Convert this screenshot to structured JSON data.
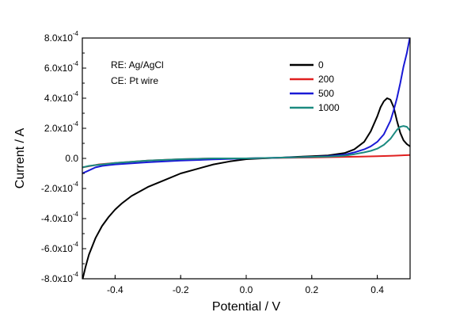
{
  "chart_data": {
    "type": "line",
    "title": "",
    "xlabel": "Potential / V",
    "ylabel": "Current / A",
    "xlim": [
      -0.5,
      0.5
    ],
    "ylim": [
      -0.0008,
      0.0008
    ],
    "grid": false,
    "x_ticks": [
      -0.4,
      -0.2,
      0.0,
      0.2,
      0.4
    ],
    "x_tick_labels": [
      "-0.4",
      "-0.2",
      "0.0",
      "0.2",
      "0.4"
    ],
    "y_tick_labels": [
      {
        "value": 0.0008,
        "mantissa": "8.0x10",
        "exp": "-4"
      },
      {
        "value": 0.0006,
        "mantissa": "6.0x10",
        "exp": "-4"
      },
      {
        "value": 0.0004,
        "mantissa": "4.0x10",
        "exp": "-4"
      },
      {
        "value": 0.0002,
        "mantissa": "2.0x10",
        "exp": "-4"
      },
      {
        "value": 0.0,
        "mantissa": "0.0",
        "exp": ""
      },
      {
        "value": -0.0002,
        "mantissa": "-2.0x10",
        "exp": "-4"
      },
      {
        "value": -0.0004,
        "mantissa": "-4.0x10",
        "exp": "-4"
      },
      {
        "value": -0.0006,
        "mantissa": "-6.0x10",
        "exp": "-4"
      },
      {
        "value": -0.0008,
        "mantissa": "-8.0x10",
        "exp": "-4"
      }
    ],
    "annotations": [
      "RE: Ag/AgCl",
      "CE: Pt wire"
    ],
    "legend_position": "top-right",
    "series": [
      {
        "name": "0",
        "color": "#000000",
        "x": [
          -0.5,
          -0.49,
          -0.48,
          -0.46,
          -0.44,
          -0.42,
          -0.4,
          -0.38,
          -0.35,
          -0.3,
          -0.25,
          -0.2,
          -0.15,
          -0.1,
          -0.05,
          0.0,
          0.05,
          0.1,
          0.15,
          0.2,
          0.25,
          0.3,
          0.33,
          0.36,
          0.38,
          0.4,
          0.41,
          0.42,
          0.43,
          0.44,
          0.45,
          0.46,
          0.47,
          0.48,
          0.49,
          0.5
        ],
        "y": [
          -0.00081,
          -0.00072,
          -0.00064,
          -0.00053,
          -0.00045,
          -0.00039,
          -0.00034,
          -0.0003,
          -0.00025,
          -0.00019,
          -0.000145,
          -0.0001,
          -7e-05,
          -4e-05,
          -2e-05,
          -5e-06,
          0.0,
          5e-06,
          1e-05,
          1.5e-05,
          2e-05,
          3.5e-05,
          6e-05,
          0.00011,
          0.00018,
          0.00028,
          0.00034,
          0.00038,
          0.0004,
          0.00039,
          0.00034,
          0.00025,
          0.00017,
          0.00012,
          9.5e-05,
          8e-05
        ]
      },
      {
        "name": "200",
        "color": "#e02020",
        "x": [
          -0.5,
          -0.45,
          -0.4,
          -0.3,
          -0.2,
          -0.1,
          0.0,
          0.1,
          0.2,
          0.3,
          0.35,
          0.4,
          0.45,
          0.5
        ],
        "y": [
          -6e-05,
          -4e-05,
          -3e-05,
          -1.5e-05,
          -5e-06,
          0.0,
          0.0,
          3e-06,
          6e-06,
          1e-05,
          1.2e-05,
          1.5e-05,
          1.8e-05,
          2.2e-05
        ]
      },
      {
        "name": "500",
        "color": "#1a1ad6",
        "x": [
          -0.5,
          -0.48,
          -0.46,
          -0.44,
          -0.42,
          -0.4,
          -0.35,
          -0.3,
          -0.2,
          -0.1,
          0.0,
          0.1,
          0.2,
          0.25,
          0.3,
          0.33,
          0.36,
          0.38,
          0.4,
          0.42,
          0.44,
          0.45,
          0.46,
          0.47,
          0.48,
          0.49,
          0.5
        ],
        "y": [
          -0.0001,
          -8e-05,
          -6e-05,
          -5e-05,
          -4.5e-05,
          -4e-05,
          -3.3e-05,
          -2.6e-05,
          -1.5e-05,
          -7e-06,
          0.0,
          5e-06,
          1e-05,
          1.5e-05,
          2.5e-05,
          4e-05,
          6e-05,
          8e-05,
          0.00011,
          0.00016,
          0.00025,
          0.00032,
          0.0004,
          0.0005,
          0.00061,
          0.0007,
          0.00081
        ]
      },
      {
        "name": "1000",
        "color": "#1b8a80",
        "x": [
          -0.5,
          -0.48,
          -0.46,
          -0.44,
          -0.42,
          -0.4,
          -0.35,
          -0.3,
          -0.2,
          -0.1,
          0.0,
          0.1,
          0.2,
          0.25,
          0.3,
          0.33,
          0.36,
          0.38,
          0.4,
          0.42,
          0.44,
          0.45,
          0.46,
          0.47,
          0.48,
          0.49,
          0.5
        ],
        "y": [
          -6e-05,
          -5e-05,
          -4.5e-05,
          -4e-05,
          -3.5e-05,
          -3e-05,
          -2.2e-05,
          -1.5e-05,
          -5e-06,
          0.0,
          0.0,
          5e-06,
          1e-05,
          1.2e-05,
          1.8e-05,
          2.8e-05,
          4e-05,
          5e-05,
          6.5e-05,
          9e-05,
          0.00013,
          0.00016,
          0.00019,
          0.00021,
          0.000215,
          0.00021,
          0.000185
        ]
      }
    ]
  }
}
